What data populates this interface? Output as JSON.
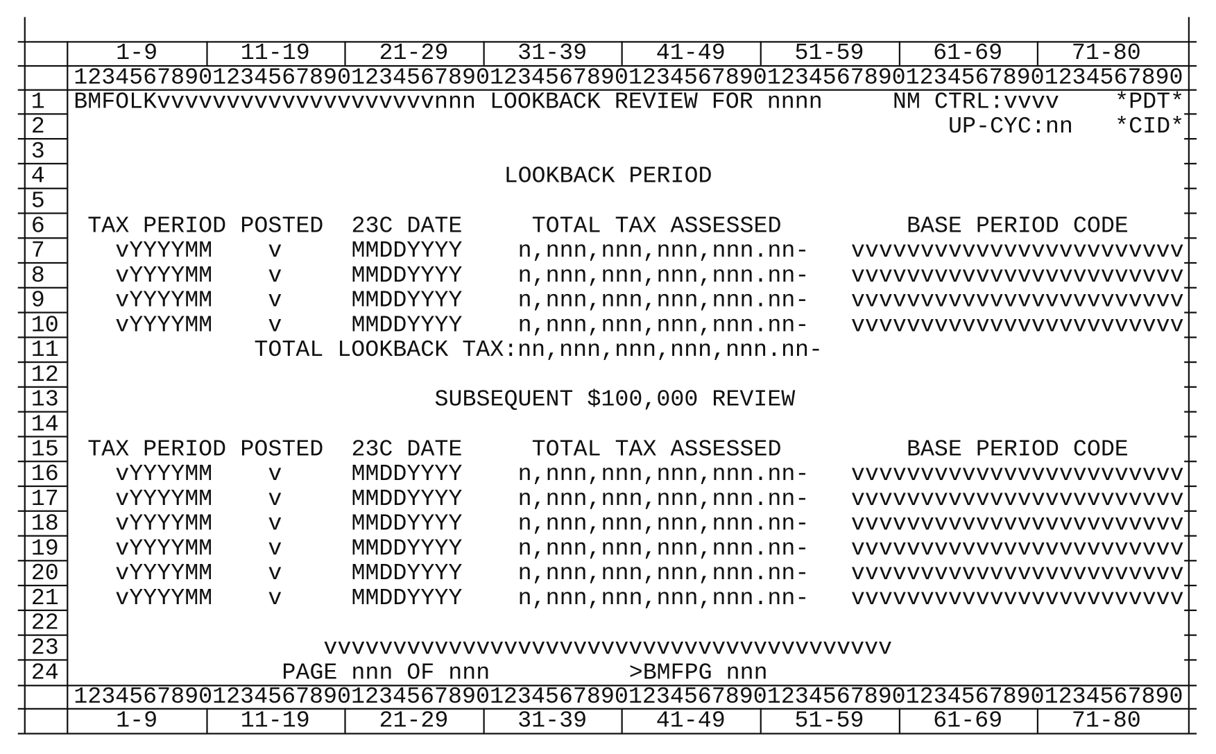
{
  "column_ranges": [
    "1-9",
    "11-19",
    "21-29",
    "31-39",
    "41-49",
    "51-59",
    "61-69",
    "71-80"
  ],
  "ruler": "12345678901234567890123456789012345678901234567890123456789012345678901234567890",
  "row_numbers": [
    "1",
    "2",
    "3",
    "4",
    "5",
    "6",
    "7",
    "8",
    "9",
    "10",
    "11",
    "12",
    "13",
    "14",
    "15",
    "16",
    "17",
    "18",
    "19",
    "20",
    "21",
    "22",
    "23",
    "24"
  ],
  "screen": {
    "header": {
      "title": "BMFOLKvvvvvvvvvvvvvvvvvvvvnnn LOOKBACK REVIEW FOR nnnn",
      "nm_ctrl": "NM CTRL:vvvv",
      "pdt": "*PDT*",
      "up_cyc": "UP-CYC:nn",
      "cid": "*CID*"
    },
    "lookback": {
      "heading": "LOOKBACK PERIOD",
      "columns": [
        "TAX PERIOD",
        "POSTED",
        "23C DATE",
        "TOTAL TAX ASSESSED",
        "BASE PERIOD CODE"
      ],
      "rows": [
        [
          "vYYYYMM",
          "v",
          "MMDDYYYY",
          "n,nnn,nnn,nnn,nnn.nn-",
          "vvvvvvvvvvvvvvvvvvvvvvvv"
        ],
        [
          "vYYYYMM",
          "v",
          "MMDDYYYY",
          "n,nnn,nnn,nnn,nnn.nn-",
          "vvvvvvvvvvvvvvvvvvvvvvvv"
        ],
        [
          "vYYYYMM",
          "v",
          "MMDDYYYY",
          "n,nnn,nnn,nnn,nnn.nn-",
          "vvvvvvvvvvvvvvvvvvvvvvvv"
        ],
        [
          "vYYYYMM",
          "v",
          "MMDDYYYY",
          "n,nnn,nnn,nnn,nnn.nn-",
          "vvvvvvvvvvvvvvvvvvvvvvvv"
        ]
      ],
      "total": "TOTAL LOOKBACK TAX:nn,nnn,nnn,nnn,nnn.nn-"
    },
    "subsequent": {
      "heading": "SUBSEQUENT $100,000 REVIEW",
      "columns": [
        "TAX PERIOD",
        "POSTED",
        "23C DATE",
        "TOTAL TAX ASSESSED",
        "BASE PERIOD CODE"
      ],
      "rows": [
        [
          "vYYYYMM",
          "v",
          "MMDDYYYY",
          "n,nnn,nnn,nnn,nnn.nn-",
          "vvvvvvvvvvvvvvvvvvvvvvvv"
        ],
        [
          "vYYYYMM",
          "v",
          "MMDDYYYY",
          "n,nnn,nnn,nnn,nnn.nn-",
          "vvvvvvvvvvvvvvvvvvvvvvvv"
        ],
        [
          "vYYYYMM",
          "v",
          "MMDDYYYY",
          "n,nnn,nnn,nnn,nnn.nn-",
          "vvvvvvvvvvvvvvvvvvvvvvvv"
        ],
        [
          "vYYYYMM",
          "v",
          "MMDDYYYY",
          "n,nnn,nnn,nnn,nnn.nn-",
          "vvvvvvvvvvvvvvvvvvvvvvvv"
        ],
        [
          "vYYYYMM",
          "v",
          "MMDDYYYY",
          "n,nnn,nnn,nnn,nnn.nn-",
          "vvvvvvvvvvvvvvvvvvvvvvvv"
        ],
        [
          "vYYYYMM",
          "v",
          "MMDDYYYY",
          "n,nnn,nnn,nnn,nnn.nn-",
          "vvvvvvvvvvvvvvvvvvvvvvvv"
        ]
      ]
    },
    "message_line": "vvvvvvvvvvvvvvvvvvvvvvvvvvvvvvvvvvvvvvvvv",
    "page_info": "PAGE nnn OF nnn",
    "next_command": ">BMFPG nnn"
  }
}
